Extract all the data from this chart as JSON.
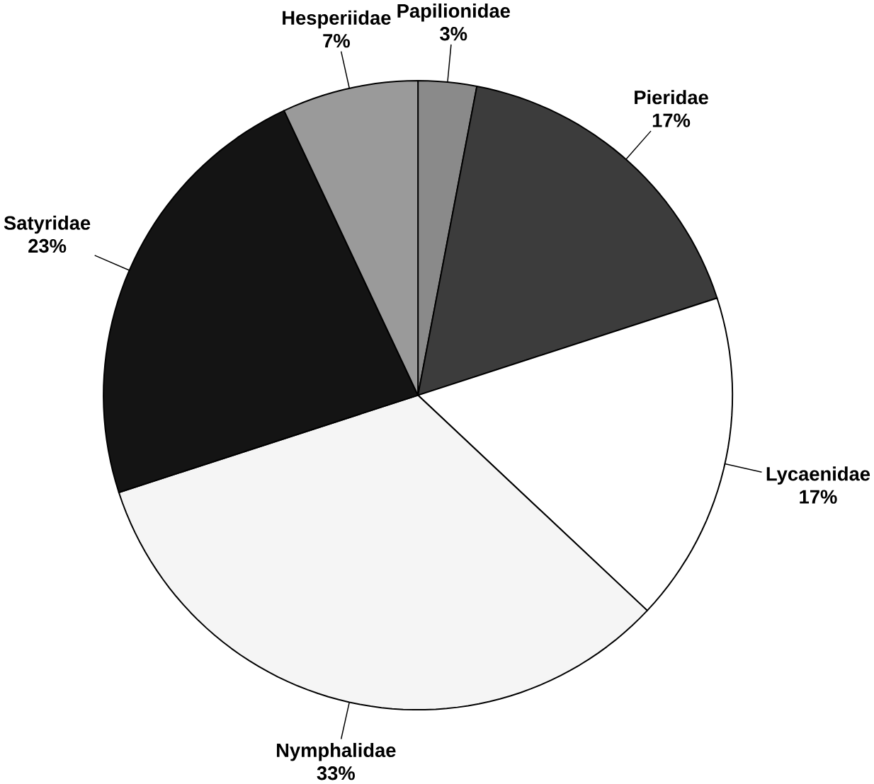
{
  "chart_data": {
    "type": "pie",
    "categories": [
      "Papilionidae",
      "Pieridae",
      "Lycaenidae",
      "Nymphalidae",
      "Satyridae",
      "Hesperiidae"
    ],
    "values": [
      3,
      17,
      17,
      33,
      23,
      7
    ],
    "value_labels": [
      "3%",
      "17%",
      "17%",
      "33%",
      "23%",
      "7%"
    ],
    "colors": [
      "#8a8a8a",
      "#3c3c3c",
      "#ffffff",
      "#f5f5f5",
      "#141414",
      "#9a9a9a"
    ]
  }
}
